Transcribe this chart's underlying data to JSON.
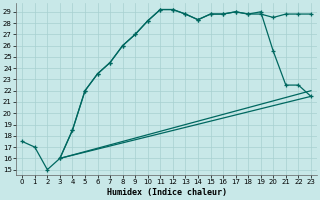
{
  "xlabel": "Humidex (Indice chaleur)",
  "bg_color": "#c8e8e8",
  "grid_color": "#a8d0d0",
  "line_color": "#006860",
  "xlim": [
    -0.5,
    23.5
  ],
  "ylim": [
    14.5,
    29.8
  ],
  "xticks": [
    0,
    1,
    2,
    3,
    4,
    5,
    6,
    7,
    8,
    9,
    10,
    11,
    12,
    13,
    14,
    15,
    16,
    17,
    18,
    19,
    20,
    21,
    22,
    23
  ],
  "yticks": [
    15,
    16,
    17,
    18,
    19,
    20,
    21,
    22,
    23,
    24,
    25,
    26,
    27,
    28,
    29
  ],
  "line1": {
    "x": [
      0,
      1,
      2,
      3,
      4,
      5,
      6,
      7,
      8,
      9,
      10,
      11,
      12,
      13,
      14,
      15,
      16,
      17,
      18,
      19,
      20,
      21,
      22,
      23
    ],
    "y": [
      17.5,
      17.0,
      15.0,
      16.0,
      18.5,
      22.0,
      23.5,
      24.5,
      26.0,
      27.0,
      28.2,
      29.2,
      29.2,
      28.8,
      28.3,
      28.8,
      28.8,
      29.0,
      28.8,
      28.8,
      28.5,
      28.8,
      28.8,
      28.8
    ],
    "marker": true
  },
  "line2": {
    "x": [
      3,
      4,
      5,
      6,
      7,
      8,
      9,
      10,
      11,
      12,
      13,
      14,
      15,
      16,
      17,
      18,
      19,
      20,
      21,
      22,
      23
    ],
    "y": [
      16.0,
      18.5,
      22.0,
      23.5,
      24.5,
      26.0,
      27.0,
      28.2,
      29.2,
      29.2,
      28.8,
      28.3,
      28.8,
      28.8,
      29.0,
      28.8,
      29.0,
      25.5,
      22.5,
      22.5,
      21.5
    ],
    "marker": true
  },
  "line3_x": [
    3,
    23
  ],
  "line3_y": [
    16.0,
    21.5
  ],
  "line4_x": [
    3,
    23
  ],
  "line4_y": [
    16.0,
    22.0
  ]
}
